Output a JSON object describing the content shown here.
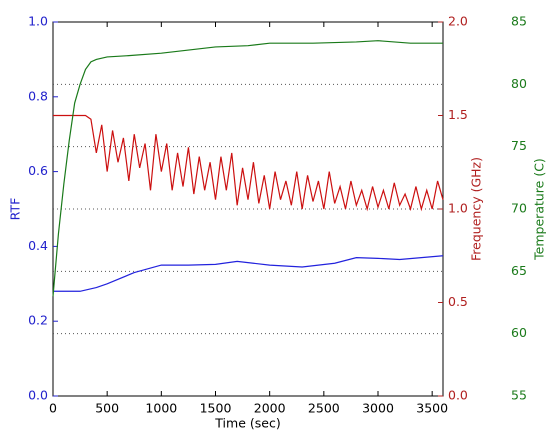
{
  "chart_data": {
    "type": "line",
    "xlabel": "Time (sec)",
    "ylabel": "RTF",
    "y2label": "Frequency (GHz)",
    "y3label": "Temperature (C)",
    "xlim": [
      0,
      3600
    ],
    "xticks": [
      0,
      500,
      1000,
      1500,
      2000,
      2500,
      3000,
      3500
    ],
    "ylim": [
      0,
      1
    ],
    "yticks": [
      {
        "value": 0,
        "label": "0.0"
      },
      0.2,
      0.4,
      0.6,
      0.8,
      {
        "value": 1,
        "label": "1.0"
      }
    ],
    "y2lim": [
      0,
      2
    ],
    "y2ticks": [
      {
        "value": 0,
        "label": "0.0"
      },
      0.5,
      {
        "value": 1,
        "label": "1.0"
      },
      1.5,
      {
        "value": 2,
        "label": "2.0"
      }
    ],
    "y3lim": [
      55,
      85
    ],
    "y3ticks": [
      55,
      60,
      65,
      70,
      75,
      80,
      85
    ],
    "grid": "y3",
    "ycolor": "#2222cc",
    "y2color": "#b02020",
    "y3color": "#1a7a1a",
    "series": [
      {
        "color": "#2222dd",
        "axis": "y",
        "x": [
          0,
          250,
          400,
          500,
          750,
          1000,
          1250,
          1500,
          1700,
          1850,
          2000,
          2300,
          2600,
          2800,
          3000,
          3200,
          3400,
          3600
        ],
        "values": [
          0.28,
          0.28,
          0.29,
          0.3,
          0.33,
          0.35,
          0.35,
          0.352,
          0.36,
          0.355,
          0.35,
          0.345,
          0.355,
          0.37,
          0.368,
          0.365,
          0.37,
          0.375
        ]
      },
      {
        "color": "#cc1010",
        "axis": "y2",
        "x": [
          0,
          300,
          350,
          400,
          450,
          500,
          550,
          600,
          650,
          700,
          750,
          800,
          850,
          900,
          950,
          1000,
          1050,
          1100,
          1150,
          1200,
          1250,
          1300,
          1350,
          1400,
          1450,
          1500,
          1550,
          1600,
          1650,
          1700,
          1750,
          1800,
          1850,
          1900,
          1950,
          2000,
          2050,
          2100,
          2150,
          2200,
          2250,
          2300,
          2350,
          2400,
          2450,
          2500,
          2550,
          2600,
          2650,
          2700,
          2750,
          2800,
          2850,
          2900,
          2950,
          3000,
          3050,
          3100,
          3150,
          3200,
          3250,
          3300,
          3350,
          3400,
          3450,
          3500,
          3550,
          3600
        ],
        "values": [
          1.5,
          1.5,
          1.48,
          1.3,
          1.45,
          1.2,
          1.42,
          1.25,
          1.38,
          1.15,
          1.4,
          1.22,
          1.35,
          1.1,
          1.4,
          1.2,
          1.35,
          1.1,
          1.3,
          1.12,
          1.33,
          1.08,
          1.28,
          1.1,
          1.25,
          1.05,
          1.28,
          1.1,
          1.3,
          1.02,
          1.22,
          1.05,
          1.25,
          1.03,
          1.18,
          1.0,
          1.2,
          1.05,
          1.15,
          1.02,
          1.2,
          1.0,
          1.18,
          1.04,
          1.15,
          1.0,
          1.2,
          1.03,
          1.12,
          1.0,
          1.15,
          1.02,
          1.1,
          1.0,
          1.12,
          1.01,
          1.1,
          1.0,
          1.14,
          1.02,
          1.08,
          1.0,
          1.12,
          1.0,
          1.1,
          1.0,
          1.15,
          1.05
        ]
      },
      {
        "color": "#1a7a1a",
        "axis": "y3",
        "x": [
          0,
          50,
          100,
          150,
          200,
          250,
          300,
          350,
          400,
          500,
          700,
          1000,
          1300,
          1500,
          1800,
          2000,
          2400,
          2800,
          3000,
          3300,
          3600
        ],
        "values": [
          63,
          68,
          72,
          75.5,
          78.5,
          80,
          81.2,
          81.8,
          82,
          82.2,
          82.3,
          82.5,
          82.8,
          83,
          83.1,
          83.3,
          83.3,
          83.4,
          83.5,
          83.3,
          83.3
        ]
      }
    ]
  }
}
